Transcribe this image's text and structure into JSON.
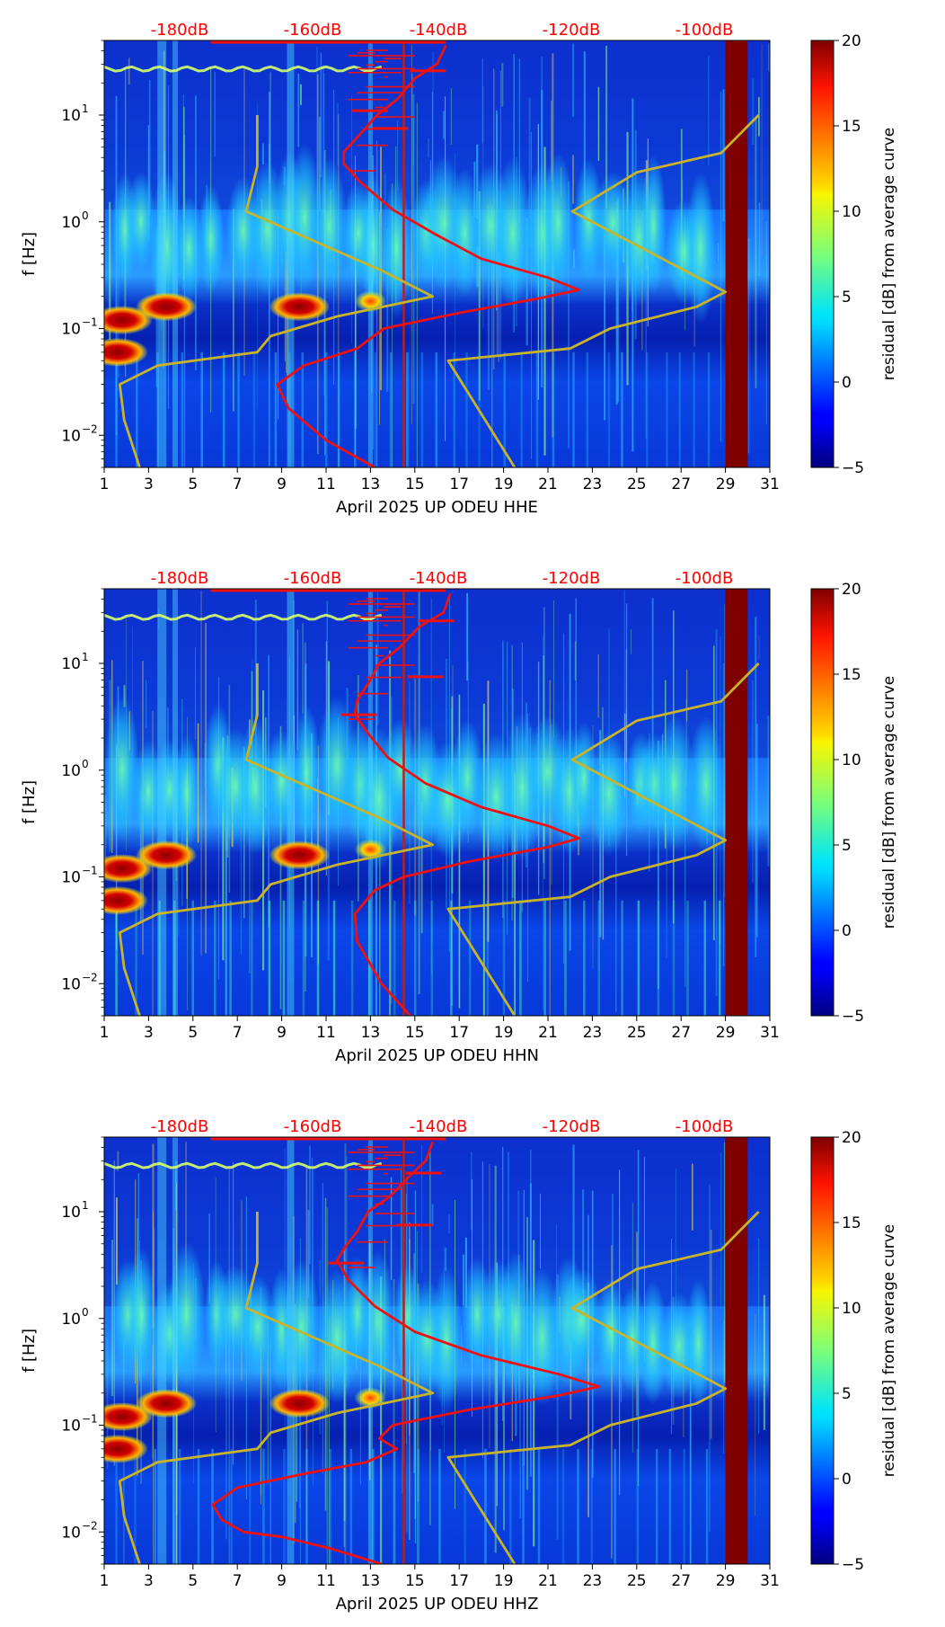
{
  "chart_data": [
    {
      "type": "heatmap",
      "title": "",
      "xlabel": "April 2025 UP ODEU  HHE",
      "ylabel": "f [Hz]",
      "x_ticks": [
        1,
        3,
        5,
        7,
        9,
        11,
        13,
        15,
        17,
        19,
        21,
        23,
        25,
        27,
        29,
        31
      ],
      "xlim": [
        1,
        31
      ],
      "y_scale": "log",
      "ylim": [
        0.005,
        50
      ],
      "y_ticks": [
        {
          "value": 0.01,
          "base": "10",
          "exp": "−2"
        },
        {
          "value": 0.1,
          "base": "10",
          "exp": "−1"
        },
        {
          "value": 1,
          "base": "10",
          "exp": "0"
        },
        {
          "value": 10,
          "base": "10",
          "exp": "1"
        }
      ],
      "top_axis_labels": [
        "-180dB",
        "-160dB",
        "-140dB",
        "-120dB",
        "-100dB"
      ],
      "top_axis_color": "#ff0000",
      "colorbar": {
        "label": "residual [dB] from average curve",
        "min": -5,
        "max": 20,
        "ticks": [
          -5,
          0,
          5,
          10,
          15,
          20
        ],
        "colormap": "jet"
      },
      "gap_band_days": [
        29,
        30
      ],
      "vertical_line_day": 14.5,
      "series": [
        {
          "name": "PSD mean (red)",
          "color": "#ee1111",
          "points": [
            [
              13.2,
              0.005
            ],
            [
              11,
              0.009
            ],
            [
              9.3,
              0.018
            ],
            [
              8.8,
              0.03
            ],
            [
              10,
              0.045
            ],
            [
              12.4,
              0.065
            ],
            [
              13.6,
              0.1
            ],
            [
              17,
              0.14
            ],
            [
              20.5,
              0.19
            ],
            [
              22.4,
              0.23
            ],
            [
              21,
              0.3
            ],
            [
              18,
              0.45
            ],
            [
              16,
              0.75
            ],
            [
              14,
              1.3
            ],
            [
              12.5,
              2.4
            ],
            [
              11.8,
              3.5
            ],
            [
              11.8,
              4.5
            ],
            [
              12.5,
              6.5
            ],
            [
              13.3,
              10
            ],
            [
              14.2,
              14
            ],
            [
              15,
              22
            ],
            [
              16,
              30
            ],
            [
              16.4,
              45
            ]
          ],
          "marker_spikes": [
            [
              14.7,
              7.5
            ],
            [
              13.8,
              11
            ],
            [
              16.4,
              26
            ]
          ]
        },
        {
          "name": "NLNM (olive)",
          "color": "#c8b42a",
          "points": [
            [
              2.6,
              0.005
            ],
            [
              1.9,
              0.014
            ],
            [
              1.7,
              0.03
            ],
            [
              3.4,
              0.045
            ],
            [
              7.9,
              0.06
            ],
            [
              8.5,
              0.085
            ],
            [
              11.5,
              0.13
            ],
            [
              15.8,
              0.2
            ],
            [
              13.5,
              0.35
            ],
            [
              7.4,
              1.25
            ],
            [
              7.9,
              3.3
            ],
            [
              7.9,
              10
            ]
          ]
        },
        {
          "name": "NHNM (olive)",
          "color": "#c8b42a",
          "points": [
            [
              19.5,
              0.005
            ],
            [
              16.5,
              0.05
            ],
            [
              22,
              0.065
            ],
            [
              23.8,
              0.1
            ],
            [
              27.7,
              0.16
            ],
            [
              29,
              0.22
            ],
            [
              22.1,
              1.25
            ],
            [
              25,
              2.9
            ],
            [
              28.8,
              4.4
            ],
            [
              30.5,
              10
            ]
          ]
        }
      ],
      "bright_events": [
        {
          "day": 3.8,
          "freq": 0.16,
          "label": "hot"
        },
        {
          "day": 9.8,
          "freq": 0.16,
          "label": "hot"
        },
        {
          "day": 1.8,
          "freq": 0.12,
          "label": "hot"
        },
        {
          "day": 1.6,
          "freq": 0.06,
          "label": "hot"
        },
        {
          "day": 13.0,
          "freq": 0.18,
          "label": "warm"
        }
      ]
    },
    {
      "type": "heatmap",
      "title": "",
      "xlabel": "April 2025 UP ODEU  HHN",
      "ylabel": "f [Hz]",
      "x_ticks": [
        1,
        3,
        5,
        7,
        9,
        11,
        13,
        15,
        17,
        19,
        21,
        23,
        25,
        27,
        29,
        31
      ],
      "xlim": [
        1,
        31
      ],
      "y_scale": "log",
      "ylim": [
        0.005,
        50
      ],
      "y_ticks": [
        {
          "value": 0.01,
          "base": "10",
          "exp": "−2"
        },
        {
          "value": 0.1,
          "base": "10",
          "exp": "−1"
        },
        {
          "value": 1,
          "base": "10",
          "exp": "0"
        },
        {
          "value": 10,
          "base": "10",
          "exp": "1"
        }
      ],
      "top_axis_labels": [
        "-180dB",
        "-160dB",
        "-140dB",
        "-120dB",
        "-100dB"
      ],
      "top_axis_color": "#ff0000",
      "colorbar": {
        "label": "residual [dB] from average curve",
        "min": -5,
        "max": 20,
        "ticks": [
          -5,
          0,
          5,
          10,
          15,
          20
        ],
        "colormap": "jet"
      },
      "gap_band_days": [
        29,
        30
      ],
      "vertical_line_day": 14.5,
      "series": [
        {
          "name": "PSD mean (red)",
          "color": "#ee1111",
          "points": [
            [
              14.8,
              0.005
            ],
            [
              13.5,
              0.01
            ],
            [
              12.4,
              0.025
            ],
            [
              12.3,
              0.045
            ],
            [
              13.2,
              0.075
            ],
            [
              14.5,
              0.1
            ],
            [
              17.5,
              0.14
            ],
            [
              21,
              0.19
            ],
            [
              22.4,
              0.23
            ],
            [
              21,
              0.3
            ],
            [
              18,
              0.45
            ],
            [
              15.5,
              0.75
            ],
            [
              13.8,
              1.3
            ],
            [
              12.9,
              2.2
            ],
            [
              12.3,
              3.3
            ],
            [
              12.4,
              4.5
            ],
            [
              12.9,
              6.5
            ],
            [
              13.4,
              10
            ],
            [
              14.3,
              14
            ],
            [
              15.2,
              22
            ],
            [
              16.3,
              30
            ],
            [
              16.6,
              45
            ]
          ],
          "marker_spikes": [
            [
              16.3,
              7.5
            ],
            [
              13.3,
              3.3
            ],
            [
              16.8,
              25
            ]
          ]
        },
        {
          "name": "NLNM (olive)",
          "color": "#c8b42a",
          "points": [
            [
              2.6,
              0.005
            ],
            [
              1.9,
              0.014
            ],
            [
              1.7,
              0.03
            ],
            [
              3.4,
              0.045
            ],
            [
              7.9,
              0.06
            ],
            [
              8.5,
              0.085
            ],
            [
              11.5,
              0.13
            ],
            [
              15.8,
              0.2
            ],
            [
              13.5,
              0.35
            ],
            [
              7.4,
              1.25
            ],
            [
              7.9,
              3.3
            ],
            [
              7.9,
              10
            ]
          ]
        },
        {
          "name": "NHNM (olive)",
          "color": "#c8b42a",
          "points": [
            [
              19.5,
              0.005
            ],
            [
              16.5,
              0.05
            ],
            [
              22,
              0.065
            ],
            [
              23.8,
              0.1
            ],
            [
              27.7,
              0.16
            ],
            [
              29,
              0.22
            ],
            [
              22.1,
              1.25
            ],
            [
              25,
              2.9
            ],
            [
              28.8,
              4.4
            ],
            [
              30.5,
              10
            ]
          ]
        }
      ],
      "bright_events": [
        {
          "day": 3.8,
          "freq": 0.16,
          "label": "hot"
        },
        {
          "day": 9.8,
          "freq": 0.16,
          "label": "hot"
        },
        {
          "day": 1.8,
          "freq": 0.12,
          "label": "hot"
        },
        {
          "day": 1.6,
          "freq": 0.06,
          "label": "hot"
        },
        {
          "day": 13.0,
          "freq": 0.18,
          "label": "warm"
        }
      ]
    },
    {
      "type": "heatmap",
      "title": "",
      "xlabel": "April 2025 UP ODEU  HHZ",
      "ylabel": "f [Hz]",
      "x_ticks": [
        1,
        3,
        5,
        7,
        9,
        11,
        13,
        15,
        17,
        19,
        21,
        23,
        25,
        27,
        29,
        31
      ],
      "xlim": [
        1,
        31
      ],
      "y_scale": "log",
      "ylim": [
        0.005,
        50
      ],
      "y_ticks": [
        {
          "value": 0.01,
          "base": "10",
          "exp": "−2"
        },
        {
          "value": 0.1,
          "base": "10",
          "exp": "−1"
        },
        {
          "value": 1,
          "base": "10",
          "exp": "0"
        },
        {
          "value": 10,
          "base": "10",
          "exp": "1"
        }
      ],
      "top_axis_labels": [
        "-180dB",
        "-160dB",
        "-140dB",
        "-120dB",
        "-100dB"
      ],
      "top_axis_color": "#ff0000",
      "colorbar": {
        "label": "residual [dB] from average curve",
        "min": -5,
        "max": 20,
        "ticks": [
          -5,
          0,
          5,
          10,
          15,
          20
        ],
        "colormap": "jet"
      },
      "gap_band_days": [
        29,
        30
      ],
      "vertical_line_day": 14.5,
      "series": [
        {
          "name": "PSD mean (red)",
          "color": "#ee1111",
          "points": [
            [
              13.5,
              0.005
            ],
            [
              11.2,
              0.007
            ],
            [
              9,
              0.009
            ],
            [
              7.3,
              0.01
            ],
            [
              6.3,
              0.013
            ],
            [
              5.9,
              0.018
            ],
            [
              7,
              0.026
            ],
            [
              10,
              0.035
            ],
            [
              12.8,
              0.045
            ],
            [
              14.2,
              0.06
            ],
            [
              13.4,
              0.075
            ],
            [
              14,
              0.1
            ],
            [
              17.5,
              0.14
            ],
            [
              21.5,
              0.19
            ],
            [
              23.3,
              0.23
            ],
            [
              21.5,
              0.3
            ],
            [
              18,
              0.45
            ],
            [
              15,
              0.75
            ],
            [
              13.2,
              1.3
            ],
            [
              12,
              2.3
            ],
            [
              11.5,
              3.5
            ],
            [
              11.8,
              4.5
            ],
            [
              12.4,
              6.5
            ],
            [
              12.9,
              10
            ],
            [
              13.9,
              14
            ],
            [
              14.8,
              22
            ],
            [
              15.5,
              30
            ],
            [
              15.8,
              45
            ]
          ],
          "marker_spikes": [
            [
              15.8,
              7.5
            ],
            [
              12.7,
              3.3
            ],
            [
              16.2,
              23
            ]
          ]
        },
        {
          "name": "NLNM (olive)",
          "color": "#c8b42a",
          "points": [
            [
              2.6,
              0.005
            ],
            [
              1.9,
              0.014
            ],
            [
              1.7,
              0.03
            ],
            [
              3.4,
              0.045
            ],
            [
              7.9,
              0.06
            ],
            [
              8.5,
              0.085
            ],
            [
              11.5,
              0.13
            ],
            [
              15.8,
              0.2
            ],
            [
              13.5,
              0.35
            ],
            [
              7.4,
              1.25
            ],
            [
              7.9,
              3.3
            ],
            [
              7.9,
              10
            ]
          ]
        },
        {
          "name": "NHNM (olive)",
          "color": "#c8b42a",
          "points": [
            [
              19.5,
              0.005
            ],
            [
              16.5,
              0.05
            ],
            [
              22,
              0.065
            ],
            [
              23.8,
              0.1
            ],
            [
              27.7,
              0.16
            ],
            [
              29,
              0.22
            ],
            [
              22.1,
              1.25
            ],
            [
              25,
              2.9
            ],
            [
              28.8,
              4.4
            ],
            [
              30.5,
              10
            ]
          ]
        }
      ],
      "bright_events": [
        {
          "day": 3.8,
          "freq": 0.16,
          "label": "hot"
        },
        {
          "day": 9.8,
          "freq": 0.16,
          "label": "hot"
        },
        {
          "day": 1.8,
          "freq": 0.12,
          "label": "hot"
        },
        {
          "day": 1.6,
          "freq": 0.06,
          "label": "hot"
        },
        {
          "day": 13.0,
          "freq": 0.18,
          "label": "warm"
        }
      ]
    }
  ]
}
